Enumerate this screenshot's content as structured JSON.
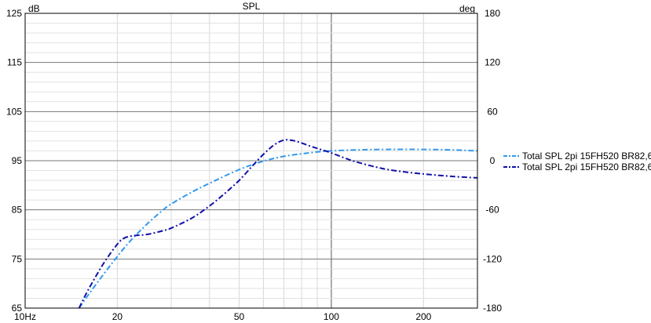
{
  "chart_data": {
    "type": "line",
    "title": "SPL",
    "x_scale": "log",
    "xlim": [
      10,
      300
    ],
    "x_ticks": [
      {
        "value": 10,
        "label": "10Hz"
      },
      {
        "value": 20,
        "label": "20"
      },
      {
        "value": 50,
        "label": "50"
      },
      {
        "value": 100,
        "label": "100"
      },
      {
        "value": 200,
        "label": "200"
      }
    ],
    "ylabel": "dB",
    "ylim": [
      65,
      125
    ],
    "y_ticks": [
      "125",
      "115",
      "105",
      "95",
      "85",
      "75",
      "65"
    ],
    "y2label": "deg",
    "y2lim": [
      -180,
      180
    ],
    "y2_ticks": [
      "180",
      "120",
      "60",
      "0",
      "-60",
      "-120",
      "-180"
    ],
    "grid": true,
    "legend_position": "right",
    "series": [
      {
        "name": "Total SPL 2pi 15FH520 BR82,6",
        "color": "#3399ee",
        "dash": "dash-dot",
        "x": [
          15,
          16,
          18,
          20,
          22,
          25,
          28,
          30,
          35,
          40,
          50,
          60,
          70,
          80,
          90,
          100,
          120,
          150,
          200,
          250,
          300
        ],
        "y": [
          65.0,
          67.5,
          71.8,
          75.5,
          78.6,
          82.1,
          84.8,
          86.2,
          88.6,
          90.4,
          93.2,
          94.9,
          95.9,
          96.4,
          96.8,
          97.0,
          97.2,
          97.3,
          97.3,
          97.2,
          97.0
        ]
      },
      {
        "name": "Total SPL 2pi 15FH520 BR82,6",
        "color": "#1010aa",
        "dash": "dash-dot",
        "x": [
          15,
          16,
          18,
          20,
          21,
          22,
          23,
          25,
          28,
          30,
          35,
          40,
          45,
          50,
          55,
          60,
          65,
          70,
          75,
          80,
          85,
          90,
          100,
          110,
          120,
          140,
          160,
          200,
          250,
          300
        ],
        "y": [
          65.0,
          68.5,
          74.0,
          78.0,
          79.2,
          79.6,
          79.8,
          80.0,
          80.7,
          81.3,
          83.3,
          85.8,
          88.4,
          91.0,
          93.8,
          96.3,
          98.2,
          99.2,
          99.1,
          98.6,
          98.0,
          97.5,
          96.6,
          95.6,
          94.8,
          93.7,
          93.0,
          92.3,
          91.8,
          91.5
        ]
      }
    ]
  }
}
